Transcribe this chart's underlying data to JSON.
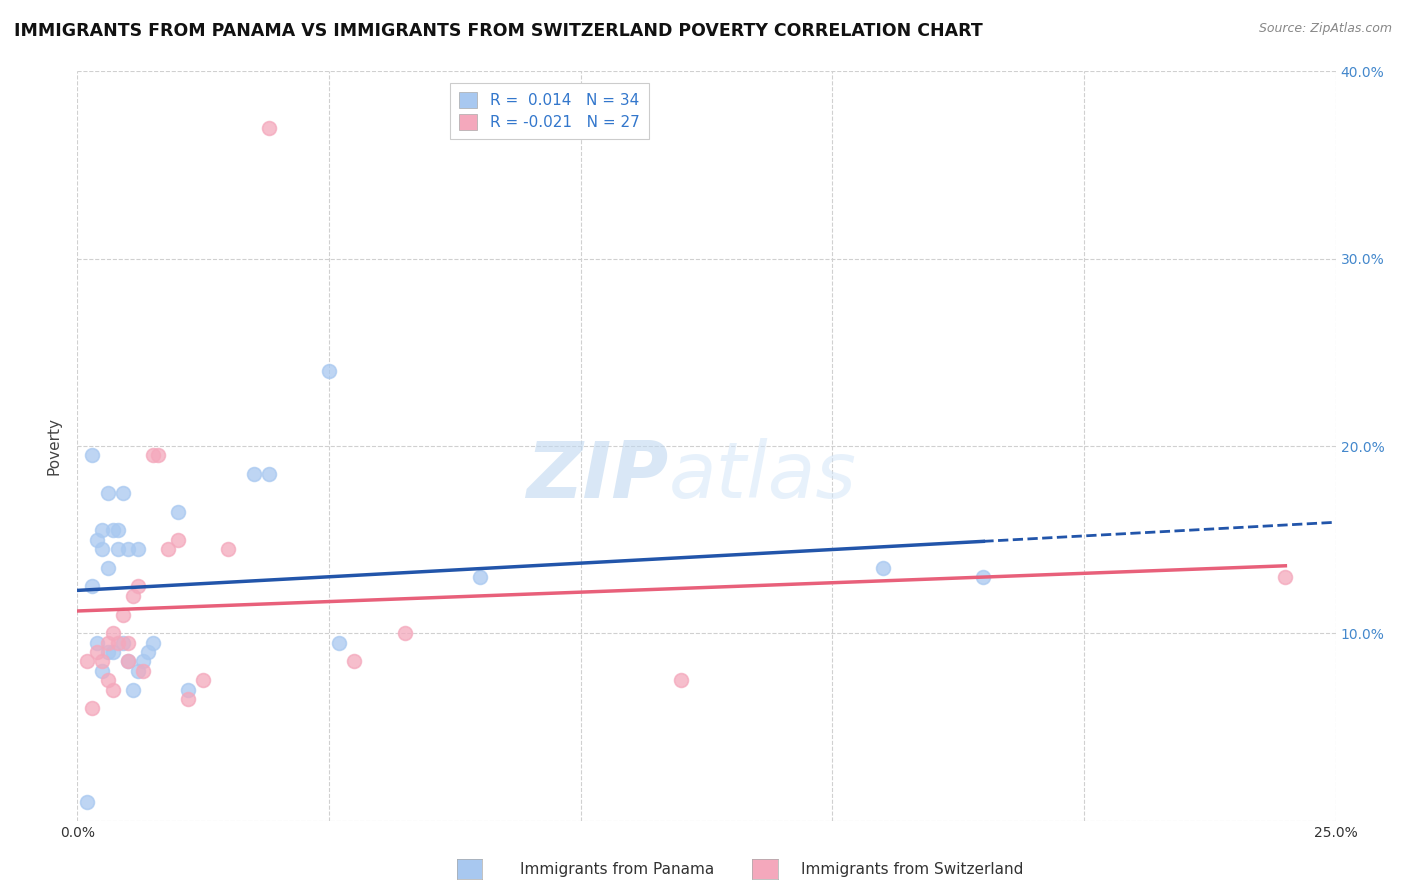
{
  "title": "IMMIGRANTS FROM PANAMA VS IMMIGRANTS FROM SWITZERLAND POVERTY CORRELATION CHART",
  "source": "Source: ZipAtlas.com",
  "ylabel": "Poverty",
  "xlabel_panama": "Immigrants from Panama",
  "xlabel_switzerland": "Immigrants from Switzerland",
  "xlim": [
    0.0,
    0.25
  ],
  "ylim": [
    0.0,
    0.4
  ],
  "x_ticks": [
    0.0,
    0.05,
    0.1,
    0.15,
    0.2,
    0.25
  ],
  "x_tick_labels": [
    "0.0%",
    "",
    "",
    "",
    "",
    "25.0%"
  ],
  "y_ticks": [
    0.0,
    0.1,
    0.2,
    0.3,
    0.4
  ],
  "y_tick_labels": [
    "",
    "10.0%",
    "20.0%",
    "30.0%",
    "40.0%"
  ],
  "panama_R": 0.014,
  "panama_N": 34,
  "switzerland_R": -0.021,
  "switzerland_N": 27,
  "panama_color": "#A8C8F0",
  "switzerland_color": "#F4A8BC",
  "regression_panama_color": "#2255AA",
  "regression_switzerland_color": "#E8607A",
  "grid_color": "#D0D0D0",
  "watermark_zip": "ZIP",
  "watermark_atlas": "atlas",
  "panama_x": [
    0.002,
    0.003,
    0.003,
    0.004,
    0.004,
    0.005,
    0.005,
    0.005,
    0.006,
    0.006,
    0.006,
    0.007,
    0.007,
    0.008,
    0.008,
    0.009,
    0.009,
    0.01,
    0.01,
    0.011,
    0.012,
    0.012,
    0.013,
    0.014,
    0.015,
    0.02,
    0.022,
    0.035,
    0.038,
    0.05,
    0.052,
    0.08,
    0.16,
    0.18
  ],
  "panama_y": [
    0.01,
    0.125,
    0.195,
    0.15,
    0.095,
    0.155,
    0.145,
    0.08,
    0.135,
    0.175,
    0.09,
    0.155,
    0.09,
    0.155,
    0.145,
    0.175,
    0.095,
    0.145,
    0.085,
    0.07,
    0.145,
    0.08,
    0.085,
    0.09,
    0.095,
    0.165,
    0.07,
    0.185,
    0.185,
    0.24,
    0.095,
    0.13,
    0.135,
    0.13
  ],
  "switzerland_x": [
    0.002,
    0.003,
    0.004,
    0.005,
    0.006,
    0.006,
    0.007,
    0.007,
    0.008,
    0.009,
    0.01,
    0.01,
    0.011,
    0.012,
    0.013,
    0.015,
    0.016,
    0.018,
    0.02,
    0.022,
    0.025,
    0.03,
    0.038,
    0.055,
    0.065,
    0.12,
    0.24
  ],
  "switzerland_y": [
    0.085,
    0.06,
    0.09,
    0.085,
    0.075,
    0.095,
    0.07,
    0.1,
    0.095,
    0.11,
    0.095,
    0.085,
    0.12,
    0.125,
    0.08,
    0.195,
    0.195,
    0.145,
    0.15,
    0.065,
    0.075,
    0.145,
    0.37,
    0.085,
    0.1,
    0.075,
    0.13
  ]
}
